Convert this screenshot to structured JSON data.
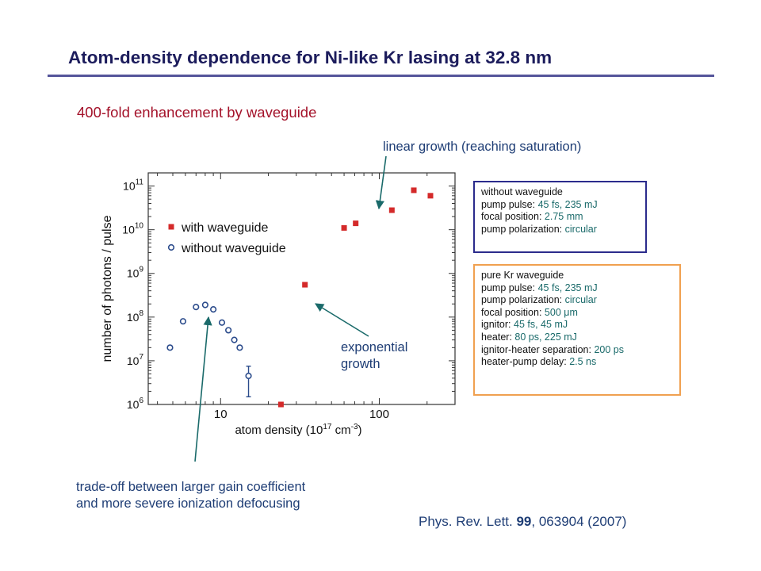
{
  "title": "Atom-density dependence for Ni-like Kr lasing at 32.8 nm",
  "subtitle": "400-fold enhancement by waveguide",
  "annotations": {
    "linear": "linear growth (reaching saturation)",
    "exponential": [
      "exponential",
      "growth"
    ],
    "tradeoff": [
      "trade-off between larger gain coefficient",
      "and more severe ionization defocusing"
    ]
  },
  "box_without": {
    "lines": [
      {
        "label": "without waveguide",
        "value": ""
      },
      {
        "label": "pump pulse:",
        "value": "45 fs, 235 mJ"
      },
      {
        "label": "focal position:",
        "value": "2.75 mm"
      },
      {
        "label": "pump polarization:",
        "value": "circular"
      }
    ]
  },
  "box_with": {
    "lines": [
      {
        "label": "pure Kr waveguide",
        "value": ""
      },
      {
        "label": "pump pulse:",
        "value": "45 fs, 235 mJ"
      },
      {
        "label": "pump polarization:",
        "value": "circular"
      },
      {
        "label": "focal position:",
        "value": "500 μm"
      },
      {
        "label": "ignitor:",
        "value": "45 fs, 45 mJ"
      },
      {
        "label": "heater:",
        "value": "80 ps, 225 mJ"
      },
      {
        "label": "ignitor-heater separation:",
        "value": "200 ps"
      },
      {
        "label": "heater-pump delay:",
        "value": "2.5 ns"
      }
    ]
  },
  "citation": {
    "journal": "Phys. Rev. Lett. ",
    "volume": "99",
    "rest": ", 063904 (2007)"
  },
  "colors": {
    "with": "#d42a2a",
    "without": "#2c4c8c",
    "accent_red": "#a4122a",
    "text_blue": "#1e3d75",
    "arrow": "#1a6a6a"
  },
  "chart_data": {
    "type": "scatter",
    "xscale": "log",
    "yscale": "log",
    "xlim": [
      3.5,
      300
    ],
    "ylim": [
      1000000,
      200000000000
    ],
    "xlabel_parts": [
      "atom density (10",
      "17",
      " cm",
      "-3",
      ")"
    ],
    "ylabel": "number of photons / pulse",
    "xticks": [
      {
        "value": 10,
        "label": "10"
      },
      {
        "value": 100,
        "label": "100"
      }
    ],
    "yticks": [
      {
        "exp": 6,
        "label": "10",
        "sup": "6"
      },
      {
        "exp": 7,
        "label": "10",
        "sup": "7"
      },
      {
        "exp": 8,
        "label": "10",
        "sup": "8"
      },
      {
        "exp": 9,
        "label": "10",
        "sup": "9"
      },
      {
        "exp": 10,
        "label": "10",
        "sup": "10"
      },
      {
        "exp": 11,
        "label": "10",
        "sup": "11"
      }
    ],
    "legend": {
      "placement": "upper-left"
    },
    "series": [
      {
        "name": "with waveguide",
        "marker": "filled-square",
        "color": "#d42a2a",
        "x": [
          24,
          34,
          60,
          71,
          120,
          165,
          210
        ],
        "y": [
          1000000,
          550000000,
          11000000000,
          14000000000,
          28000000000,
          80000000000,
          60000000000
        ]
      },
      {
        "name": "without waveguide",
        "marker": "open-circle",
        "color": "#2c4c8c",
        "x": [
          4.8,
          5.8,
          7.0,
          8.0,
          9.0,
          10.2,
          11.2,
          12.2,
          13.2,
          15.0
        ],
        "y": [
          20000000,
          80000000,
          170000000,
          190000000,
          150000000,
          75000000,
          50000000,
          30000000,
          20000000,
          4500000
        ],
        "err_low": [
          null,
          null,
          null,
          null,
          null,
          null,
          null,
          null,
          null,
          1500000
        ],
        "err_high": [
          null,
          null,
          null,
          null,
          null,
          null,
          null,
          null,
          null,
          7500000
        ]
      }
    ]
  }
}
